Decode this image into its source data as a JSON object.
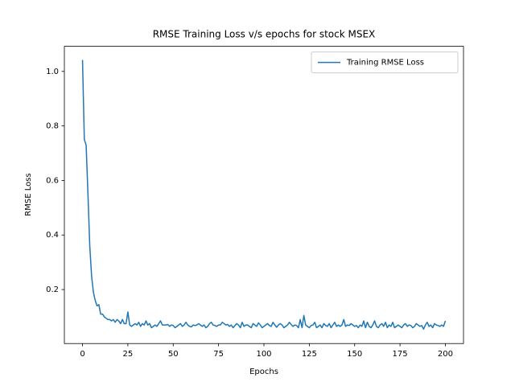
{
  "chart_data": {
    "type": "line",
    "title": "RMSE Training Loss v/s epochs for stock MSEX",
    "xlabel": "Epochs",
    "ylabel": "RMSE Loss",
    "x": [
      0,
      1,
      2,
      3,
      4,
      5,
      6,
      7,
      8,
      9,
      10,
      11,
      12,
      13,
      14,
      15,
      16,
      17,
      18,
      19,
      20,
      21,
      22,
      23,
      24,
      25,
      26,
      27,
      28,
      29,
      30,
      31,
      32,
      33,
      34,
      35,
      36,
      37,
      38,
      39,
      40,
      41,
      42,
      43,
      44,
      45,
      46,
      47,
      48,
      49,
      50,
      51,
      52,
      53,
      54,
      55,
      56,
      57,
      58,
      59,
      60,
      61,
      62,
      63,
      64,
      65,
      66,
      67,
      68,
      69,
      70,
      71,
      72,
      73,
      74,
      75,
      76,
      77,
      78,
      79,
      80,
      81,
      82,
      83,
      84,
      85,
      86,
      87,
      88,
      89,
      90,
      91,
      92,
      93,
      94,
      95,
      96,
      97,
      98,
      99,
      100,
      101,
      102,
      103,
      104,
      105,
      106,
      107,
      108,
      109,
      110,
      111,
      112,
      113,
      114,
      115,
      116,
      117,
      118,
      119,
      120,
      121,
      122,
      123,
      124,
      125,
      126,
      127,
      128,
      129,
      130,
      131,
      132,
      133,
      134,
      135,
      136,
      137,
      138,
      139,
      140,
      141,
      142,
      143,
      144,
      145,
      146,
      147,
      148,
      149,
      150,
      151,
      152,
      153,
      154,
      155,
      156,
      157,
      158,
      159,
      160,
      161,
      162,
      163,
      164,
      165,
      166,
      167,
      168,
      169,
      170,
      171,
      172,
      173,
      174,
      175,
      176,
      177,
      178,
      179,
      180,
      181,
      182,
      183,
      184,
      185,
      186,
      187,
      188,
      189,
      190,
      191,
      192,
      193,
      194,
      195,
      196,
      197,
      198,
      199,
      200
    ],
    "series": [
      {
        "name": "Training RMSE Loss",
        "color": "#1f77b4",
        "values": [
          1.042,
          0.75,
          0.73,
          0.55,
          0.36,
          0.25,
          0.19,
          0.16,
          0.14,
          0.145,
          0.11,
          0.11,
          0.1,
          0.095,
          0.09,
          0.09,
          0.085,
          0.09,
          0.08,
          0.09,
          0.085,
          0.075,
          0.09,
          0.075,
          0.075,
          0.118,
          0.07,
          0.065,
          0.07,
          0.075,
          0.07,
          0.08,
          0.065,
          0.075,
          0.07,
          0.085,
          0.07,
          0.075,
          0.06,
          0.065,
          0.07,
          0.065,
          0.075,
          0.085,
          0.07,
          0.07,
          0.07,
          0.072,
          0.065,
          0.07,
          0.068,
          0.06,
          0.065,
          0.07,
          0.075,
          0.065,
          0.07,
          0.08,
          0.07,
          0.065,
          0.063,
          0.07,
          0.068,
          0.07,
          0.075,
          0.07,
          0.065,
          0.07,
          0.06,
          0.065,
          0.075,
          0.08,
          0.07,
          0.068,
          0.065,
          0.07,
          0.07,
          0.08,
          0.075,
          0.07,
          0.072,
          0.065,
          0.07,
          0.06,
          0.068,
          0.075,
          0.07,
          0.06,
          0.08,
          0.065,
          0.07,
          0.07,
          0.065,
          0.06,
          0.075,
          0.07,
          0.065,
          0.078,
          0.07,
          0.06,
          0.065,
          0.07,
          0.075,
          0.068,
          0.065,
          0.08,
          0.07,
          0.062,
          0.07,
          0.075,
          0.07,
          0.06,
          0.065,
          0.07,
          0.08,
          0.072,
          0.065,
          0.07,
          0.068,
          0.06,
          0.09,
          0.06,
          0.105,
          0.07,
          0.065,
          0.06,
          0.068,
          0.07,
          0.08,
          0.06,
          0.065,
          0.07,
          0.06,
          0.075,
          0.068,
          0.065,
          0.075,
          0.06,
          0.07,
          0.08,
          0.065,
          0.07,
          0.065,
          0.07,
          0.09,
          0.065,
          0.07,
          0.068,
          0.075,
          0.07,
          0.065,
          0.068,
          0.06,
          0.07,
          0.065,
          0.085,
          0.06,
          0.08,
          0.065,
          0.06,
          0.07,
          0.085,
          0.065,
          0.06,
          0.07,
          0.075,
          0.065,
          0.08,
          0.06,
          0.07,
          0.065,
          0.08,
          0.06,
          0.065,
          0.07,
          0.065,
          0.06,
          0.07,
          0.075,
          0.065,
          0.07,
          0.068,
          0.06,
          0.065,
          0.075,
          0.07,
          0.065,
          0.068,
          0.055,
          0.07,
          0.08,
          0.065,
          0.07,
          0.06,
          0.075,
          0.07,
          0.068,
          0.065,
          0.07,
          0.065,
          0.085
        ]
      }
    ],
    "xlim": [
      -10,
      210
    ],
    "xticks": [
      0,
      25,
      50,
      75,
      100,
      125,
      150,
      175,
      200
    ],
    "ylim": [
      0.002,
      1.092
    ],
    "yticks": [
      0.2,
      0.4,
      0.6,
      0.8,
      {
        "value": 1,
        "label": "1.0"
      }
    ],
    "legend": "upper right",
    "grid": false
  }
}
